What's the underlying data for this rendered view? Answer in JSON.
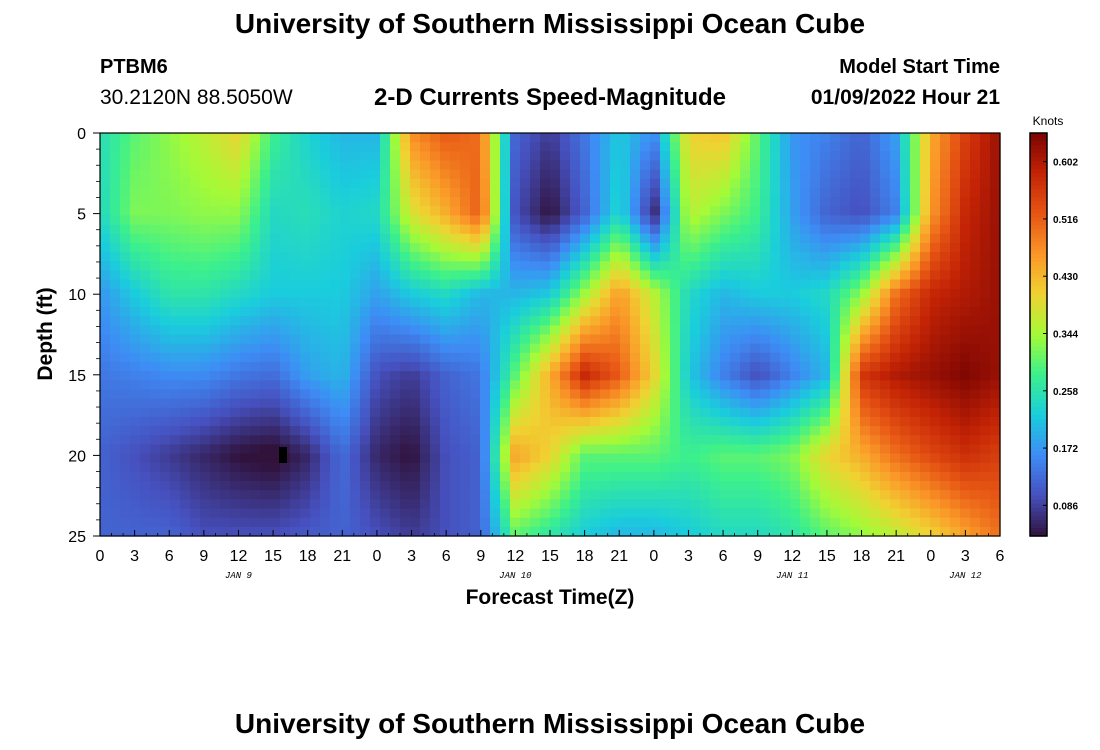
{
  "header": {
    "title": "University of Southern Mississippi Ocean Cube",
    "station_id": "PTBM6",
    "station_coords": "30.2120N  88.5050W",
    "plot_title": "2-D Currents Speed-Magnitude",
    "model_start_label": "Model Start Time",
    "model_start_value": "01/09/2022 Hour 21"
  },
  "footer": {
    "title": "University of Southern Mississippi Ocean Cube"
  },
  "chart_data": {
    "type": "heatmap",
    "title": "2-D Currents Speed-Magnitude",
    "xlabel": "Forecast Time(Z)",
    "ylabel": "Depth (ft)",
    "x_start_hour": 0,
    "x_step_hours": 3,
    "x_tick_labels": [
      "0",
      "3",
      "6",
      "9",
      "12",
      "15",
      "18",
      "21",
      "0",
      "3",
      "6",
      "9",
      "12",
      "15",
      "18",
      "21",
      "0",
      "3",
      "6",
      "9",
      "12",
      "15",
      "18",
      "21",
      "0",
      "3",
      "6"
    ],
    "date_labels": [
      {
        "label": "JAN 9",
        "hour": 12
      },
      {
        "label": "JAN 10",
        "hour": 36
      },
      {
        "label": "JAN 11",
        "hour": 60
      },
      {
        "label": "JAN 12",
        "hour": 75
      }
    ],
    "ylim": [
      0,
      25
    ],
    "y_ticks": [
      "0",
      "5",
      "10",
      "15",
      "20",
      "25"
    ],
    "colorbar": {
      "unit": "Knots",
      "min": 0.04,
      "max": 0.645,
      "tick_labels": [
        "0.086",
        "0.172",
        "0.258",
        "0.344",
        "0.430",
        "0.516",
        "0.602"
      ]
    },
    "depths_ft": [
      0,
      5,
      10,
      15,
      20,
      25
    ],
    "hours": [
      0,
      3,
      6,
      9,
      12,
      15,
      18,
      21,
      24,
      27,
      30,
      33,
      36,
      39,
      42,
      45,
      48,
      51,
      54,
      57,
      60,
      63,
      66,
      69,
      72,
      75,
      78
    ],
    "values": [
      [
        0.25,
        0.3,
        0.33,
        0.36,
        0.4,
        0.28,
        0.23,
        0.2,
        0.2,
        0.47,
        0.52,
        0.5,
        0.12,
        0.08,
        0.14,
        0.22,
        0.16,
        0.4,
        0.42,
        0.3,
        0.17,
        0.15,
        0.12,
        0.18,
        0.44,
        0.55,
        0.62
      ],
      [
        0.24,
        0.32,
        0.32,
        0.33,
        0.33,
        0.24,
        0.25,
        0.23,
        0.24,
        0.38,
        0.44,
        0.52,
        0.1,
        0.04,
        0.12,
        0.24,
        0.06,
        0.36,
        0.32,
        0.28,
        0.18,
        0.12,
        0.1,
        0.15,
        0.46,
        0.58,
        0.62
      ],
      [
        0.17,
        0.22,
        0.26,
        0.26,
        0.24,
        0.22,
        0.22,
        0.22,
        0.18,
        0.22,
        0.24,
        0.2,
        0.2,
        0.22,
        0.34,
        0.46,
        0.36,
        0.24,
        0.2,
        0.22,
        0.22,
        0.24,
        0.33,
        0.5,
        0.58,
        0.6,
        0.62
      ],
      [
        0.14,
        0.15,
        0.16,
        0.16,
        0.14,
        0.13,
        0.18,
        0.2,
        0.1,
        0.08,
        0.12,
        0.14,
        0.3,
        0.44,
        0.58,
        0.52,
        0.4,
        0.22,
        0.15,
        0.1,
        0.15,
        0.2,
        0.56,
        0.6,
        0.62,
        0.64,
        0.62
      ],
      [
        0.12,
        0.1,
        0.08,
        0.06,
        0.04,
        0.03,
        0.06,
        0.13,
        0.06,
        0.04,
        0.1,
        0.12,
        0.45,
        0.4,
        0.3,
        0.3,
        0.3,
        0.28,
        0.3,
        0.3,
        0.32,
        0.4,
        0.44,
        0.5,
        0.54,
        0.57,
        0.55
      ],
      [
        0.12,
        0.12,
        0.12,
        0.1,
        0.1,
        0.1,
        0.11,
        0.12,
        0.1,
        0.08,
        0.1,
        0.12,
        0.3,
        0.26,
        0.22,
        0.2,
        0.2,
        0.22,
        0.24,
        0.24,
        0.26,
        0.3,
        0.33,
        0.36,
        0.4,
        0.45,
        0.5
      ]
    ]
  }
}
